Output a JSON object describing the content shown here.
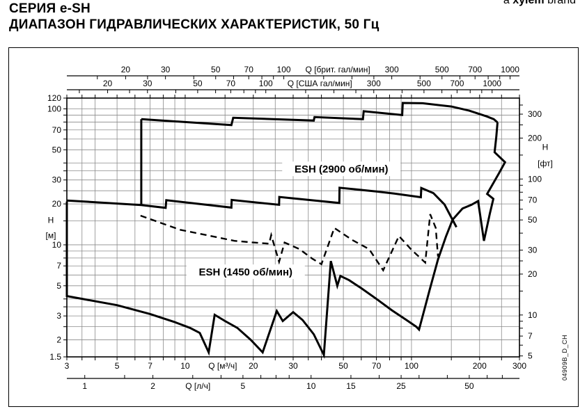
{
  "header": {
    "title_line1": "СЕРИЯ e-SH",
    "title_line2": "ДИАПАЗОН ГИДРАВЛИЧЕСКИХ ХАРАКТЕРИСТИК, 50 Гц",
    "brand_prefix": "a ",
    "brand_name": "xylem",
    "brand_suffix": " brand"
  },
  "chart_data": {
    "type": "line",
    "title": "Диапазон гидравлических характеристик серии e-SH, 50 Гц",
    "watermark": "04909B_D_CH",
    "colors": {
      "line": "#000000",
      "grid": "#8a8a8a",
      "background": "#ffffff"
    },
    "x_axis": {
      "label": "Q [м³/ч]",
      "scale": "log",
      "range": [
        3,
        300
      ],
      "labeled_ticks": [
        3,
        5,
        7,
        10,
        20,
        30,
        50,
        70,
        100,
        200,
        300
      ],
      "grid_ticks": [
        3,
        3.5,
        4,
        5,
        6,
        7,
        8,
        9,
        10,
        15,
        20,
        25,
        30,
        35,
        40,
        50,
        60,
        70,
        80,
        90,
        100,
        150,
        200,
        250,
        300
      ]
    },
    "y_axis": {
      "label": "H [м]",
      "label_lines": [
        "H",
        "[м]"
      ],
      "scale": "log",
      "range": [
        1.5,
        120
      ],
      "labeled_ticks": [
        120,
        100,
        70,
        50,
        30,
        20,
        10,
        7,
        5,
        3,
        2,
        1.5
      ],
      "grid_ticks": [
        1.5,
        2,
        2.5,
        3,
        3.5,
        4,
        5,
        6,
        7,
        8,
        9,
        10,
        15,
        20,
        25,
        30,
        35,
        40,
        50,
        60,
        70,
        80,
        90,
        100,
        120
      ]
    },
    "y2_axis": {
      "label": "H [фт]",
      "label_lines": [
        "H",
        "[фт]"
      ],
      "meters_per_unit": 0.3048,
      "labeled_ticks": [
        300,
        200,
        100,
        70,
        50,
        30,
        20,
        10,
        7,
        5
      ],
      "ticks": [
        5,
        6,
        7,
        8,
        9,
        10,
        15,
        20,
        25,
        30,
        40,
        50,
        60,
        70,
        80,
        90,
        100,
        150,
        200,
        250,
        300,
        350
      ]
    },
    "top_axis_imperial": {
      "label": "Q [брит. гал/мин]",
      "m3h_per_unit": 0.27276,
      "labeled_ticks": [
        20,
        30,
        50,
        70,
        100,
        300,
        500,
        700,
        1000
      ],
      "ticks": [
        15,
        20,
        25,
        30,
        40,
        50,
        60,
        70,
        80,
        90,
        100,
        150,
        200,
        250,
        300,
        400,
        500,
        600,
        700,
        800,
        900,
        1000
      ],
      "label_between": [
        100,
        300
      ]
    },
    "top_axis_us": {
      "label": "Q [США гал/мин]",
      "m3h_per_unit": 0.22712,
      "labeled_ticks": [
        20,
        30,
        50,
        70,
        100,
        300,
        500,
        700,
        1000
      ],
      "ticks": [
        15,
        20,
        25,
        30,
        40,
        50,
        60,
        70,
        80,
        90,
        100,
        150,
        200,
        250,
        300,
        400,
        500,
        600,
        700,
        800,
        900,
        1000
      ],
      "label_between": [
        100,
        300
      ]
    },
    "bottom_axis_ls": {
      "label": "Q [л/ч]",
      "m3h_per_unit": 3.6,
      "labeled_ticks": [
        1,
        2,
        5,
        10,
        15,
        25,
        50
      ],
      "ticks": [
        1,
        1.5,
        2,
        3,
        4,
        5,
        6,
        7,
        8,
        10,
        15,
        20,
        25,
        30,
        40,
        50,
        60,
        70
      ],
      "label_between": [
        2,
        5
      ]
    },
    "envelopes": [
      {
        "id": "esh-2900",
        "style": "solid",
        "label": {
          "text": "ESH (2900 об/мин)",
          "q": 49,
          "h": 36
        },
        "polylines": [
          [
            [
              6.4,
              84
            ],
            [
              16,
              76
            ],
            [
              16.3,
              86
            ],
            [
              37,
              82
            ],
            [
              37.3,
              87
            ],
            [
              61,
              84
            ],
            [
              61.5,
              96
            ],
            [
              91,
              90
            ],
            [
              91.5,
              110.5
            ],
            [
              112,
              110
            ],
            [
              150,
              104
            ],
            [
              180,
              97
            ],
            [
              215,
              88
            ],
            [
              231,
              84
            ],
            [
              240,
              79.5
            ]
          ],
          [
            [
              6.4,
              19.6
            ],
            [
              6.4,
              84
            ]
          ],
          [
            [
              3,
              21.2
            ],
            [
              6.4,
              19.6
            ],
            [
              8.2,
              18.7
            ],
            [
              8.25,
              21.3
            ],
            [
              16,
              18.8
            ],
            [
              16.05,
              21.4
            ],
            [
              26,
              19.7
            ],
            [
              26.05,
              22.5
            ],
            [
              48,
              20.3
            ],
            [
              48.1,
              26.3
            ],
            [
              70,
              24.7
            ],
            [
              84,
              23.8
            ],
            [
              110,
              22.4
            ],
            [
              110.5,
              26.2
            ],
            [
              125,
              24.0
            ],
            [
              140,
              19.8
            ],
            [
              158,
              13.5
            ]
          ]
        ]
      },
      {
        "id": "envelope-outline",
        "style": "solid",
        "label": null,
        "polylines": [
          [
            [
              3,
              20.8
            ],
            [
              3,
              4.2
            ],
            [
              5,
              3.6
            ],
            [
              7,
              3.1
            ],
            [
              9,
              2.7
            ],
            [
              10.5,
              2.45
            ],
            [
              11.6,
              2.25
            ],
            [
              12.7,
              1.62
            ],
            [
              13.5,
              3.06
            ],
            [
              15,
              2.75
            ],
            [
              17,
              2.45
            ],
            [
              19.5,
              2.0
            ],
            [
              22,
              1.62
            ],
            [
              25.4,
              3.26
            ],
            [
              27,
              2.75
            ],
            [
              30,
              3.2
            ],
            [
              33,
              2.8
            ],
            [
              37,
              2.2
            ],
            [
              41,
              1.55
            ],
            [
              44,
              7.6
            ],
            [
              47,
              5.0
            ],
            [
              48.5,
              5.9
            ],
            [
              53,
              5.5
            ],
            [
              60,
              4.8
            ],
            [
              70,
              4.0
            ],
            [
              82,
              3.3
            ],
            [
              95,
              2.8
            ],
            [
              105,
              2.5
            ],
            [
              108,
              2.38
            ],
            [
              120,
              4.6
            ],
            [
              131,
              7.8
            ],
            [
              142,
              11.5
            ],
            [
              152,
              15.3
            ],
            [
              168,
              18.5
            ],
            [
              184,
              19.7
            ],
            [
              197,
              21.0
            ],
            [
              209,
              10.7
            ],
            [
              222,
              17.0
            ],
            [
              230,
              21.8
            ],
            [
              216,
              23.7
            ],
            [
              242,
              33.0
            ],
            [
              259,
              40.5
            ],
            [
              233,
              48
            ],
            [
              237,
              62
            ],
            [
              240,
              79.5
            ]
          ]
        ]
      },
      {
        "id": "esh-1450",
        "style": "dashed",
        "label": {
          "text": "ESH (1450 об/мин)",
          "q": 18.5,
          "h": 6.3
        },
        "polylines": [
          [
            [
              6.35,
              16.4
            ],
            [
              9.5,
              12.9
            ],
            [
              13,
              11.6
            ],
            [
              16.5,
              10.7
            ],
            [
              20,
              10.4
            ],
            [
              23.5,
              10.2
            ],
            [
              24,
              11.8
            ],
            [
              26,
              7.5
            ],
            [
              27.5,
              10.4
            ],
            [
              32,
              9.3
            ],
            [
              36.5,
              7.9
            ],
            [
              40,
              7.2
            ],
            [
              45.6,
              13.3
            ],
            [
              55,
              10.8
            ],
            [
              65,
              9.3
            ],
            [
              75,
              6.5
            ],
            [
              88,
              11.6
            ],
            [
              100,
              9.2
            ],
            [
              115,
              7.4
            ],
            [
              121,
              16.8
            ],
            [
              128,
              13.3
            ],
            [
              131,
              8.2
            ]
          ]
        ]
      }
    ]
  }
}
